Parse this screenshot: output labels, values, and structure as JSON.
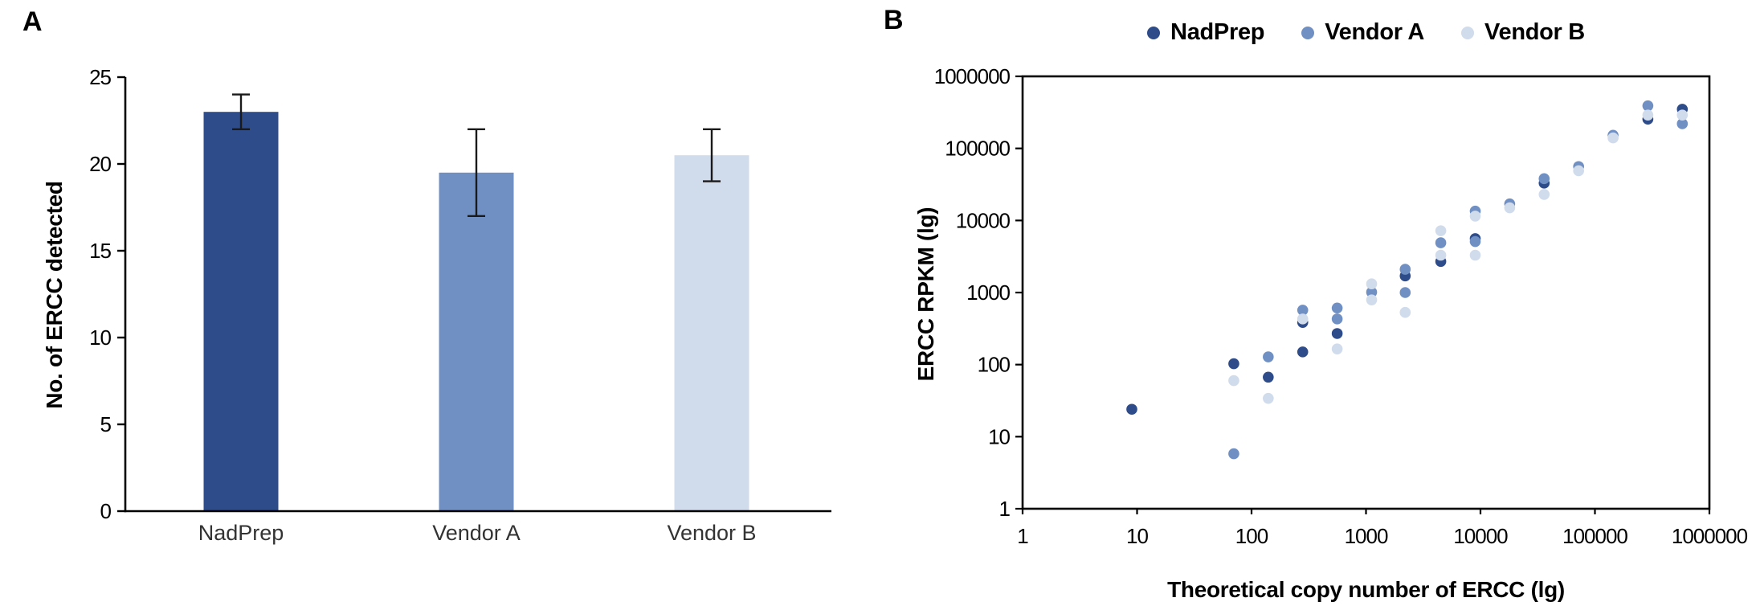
{
  "panels": {
    "a": {
      "label": "A"
    },
    "b": {
      "label": "B"
    }
  },
  "colors": {
    "nadprep": "#2e4c8a",
    "vendor_a": "#7090c4",
    "vendor_b": "#d0dbec",
    "axis": "#000000",
    "error_bar": "#1a1a1a",
    "category_text": "#333333"
  },
  "chart_data": [
    {
      "type": "bar",
      "panel": "A",
      "title": "",
      "ylabel": "No. of ERCC detected",
      "xlabel": "",
      "categories": [
        "NadPrep",
        "Vendor A",
        "Vendor B"
      ],
      "values": [
        23,
        19.5,
        20.5
      ],
      "error_low": [
        22,
        17,
        19
      ],
      "error_high": [
        24,
        22,
        22
      ],
      "ylim": [
        0,
        25
      ],
      "yticks": [
        0,
        5,
        10,
        15,
        20,
        25
      ],
      "grid": false,
      "bar_colors": [
        "#2e4c8a",
        "#7090c4",
        "#d0dbec"
      ]
    },
    {
      "type": "scatter",
      "panel": "B",
      "title": "",
      "xlabel": "Theoretical copy number of ERCC (lg)",
      "ylabel": "ERCC RPKM (lg)",
      "xscale": "log",
      "yscale": "log",
      "xlim": [
        1,
        1000000
      ],
      "ylim": [
        1,
        1000000
      ],
      "xtick_labels": [
        "1",
        "10",
        "100",
        "1000",
        "10000",
        "100000",
        "1000000"
      ],
      "ytick_labels": [
        "1",
        "10",
        "100",
        "1000",
        "10000",
        "100000",
        "1000000"
      ],
      "grid": false,
      "legend_position": "top",
      "series": [
        {
          "name": "NadPrep",
          "color": "#2e4c8a",
          "points": [
            [
              9,
              24
            ],
            [
              70,
              103
            ],
            [
              140,
              67
            ],
            [
              280,
              150
            ],
            [
              280,
              385
            ],
            [
              560,
              270
            ],
            [
              2200,
              1700
            ],
            [
              4500,
              2700
            ],
            [
              9000,
              5600
            ],
            [
              36000,
              33000
            ],
            [
              290000,
              255000
            ],
            [
              580000,
              350000
            ]
          ]
        },
        {
          "name": "Vendor A",
          "color": "#7090c4",
          "points": [
            [
              70,
              5.8
            ],
            [
              140,
              128
            ],
            [
              280,
              570
            ],
            [
              560,
              610
            ],
            [
              560,
              430
            ],
            [
              1120,
              1010
            ],
            [
              2200,
              2100
            ],
            [
              2200,
              1000
            ],
            [
              4500,
              4900
            ],
            [
              9000,
              13500
            ],
            [
              9000,
              5100
            ],
            [
              18000,
              17000
            ],
            [
              36000,
              38000
            ],
            [
              72000,
              56000
            ],
            [
              144000,
              152000
            ],
            [
              290000,
              390000
            ],
            [
              580000,
              220000
            ]
          ]
        },
        {
          "name": "Vendor B",
          "color": "#d0dbec",
          "points": [
            [
              70,
              60
            ],
            [
              140,
              34
            ],
            [
              280,
              430
            ],
            [
              560,
              165
            ],
            [
              1120,
              1320
            ],
            [
              1120,
              790
            ],
            [
              2200,
              530
            ],
            [
              4500,
              7200
            ],
            [
              4500,
              3300
            ],
            [
              9000,
              11500
            ],
            [
              9000,
              3300
            ],
            [
              18000,
              15000
            ],
            [
              36000,
              23000
            ],
            [
              72000,
              49000
            ],
            [
              144000,
              140000
            ],
            [
              290000,
              290000
            ],
            [
              580000,
              290000
            ]
          ]
        }
      ]
    }
  ]
}
